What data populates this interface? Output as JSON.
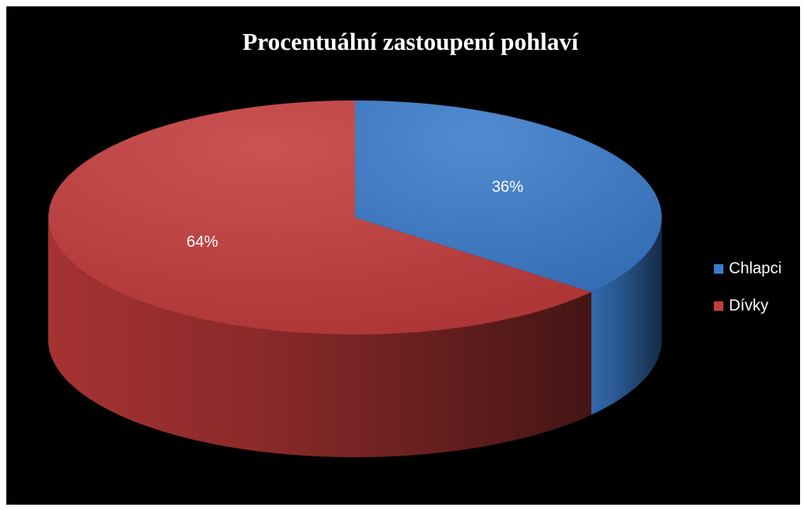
{
  "chart_data": {
    "type": "pie",
    "title": "Procentuální zastoupení pohlaví",
    "categories": [
      "Chlapci",
      "Dívky"
    ],
    "values": [
      36,
      64
    ],
    "value_labels": [
      "36%",
      "64%"
    ],
    "colors": [
      "#3b7bcb",
      "#c43b3b"
    ],
    "legend": "right"
  }
}
